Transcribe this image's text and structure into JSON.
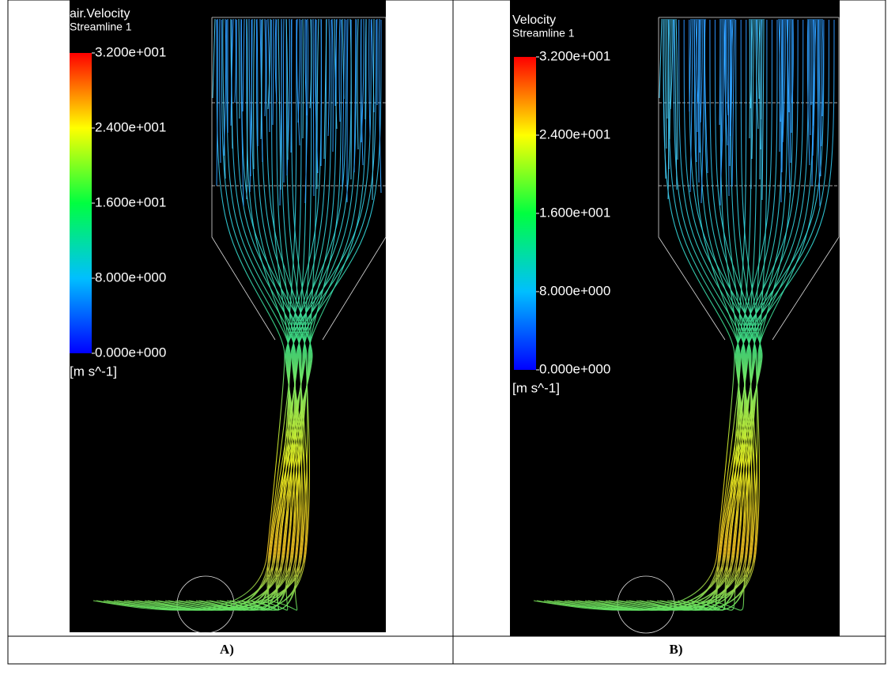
{
  "panels": [
    {
      "title": "air.Velocity",
      "subtitle": "Streamline 1",
      "colorbar": {
        "ticks": [
          {
            "value": 32,
            "label": "3.200e+001"
          },
          {
            "value": 24,
            "label": "2.400e+001"
          },
          {
            "value": 16,
            "label": "1.600e+001"
          },
          {
            "value": 8,
            "label": "8.000e+000"
          },
          {
            "value": 0,
            "label": "0.000e+000"
          }
        ],
        "unit": "[m s^-1]"
      },
      "caption": "A)"
    },
    {
      "title": "Velocity",
      "subtitle": "Streamline 1",
      "colorbar": {
        "ticks": [
          {
            "value": 32,
            "label": "3.200e+001"
          },
          {
            "value": 24,
            "label": "2.400e+001"
          },
          {
            "value": 16,
            "label": "1.600e+001"
          },
          {
            "value": 8,
            "label": "8.000e+000"
          },
          {
            "value": 0,
            "label": "0.000e+000"
          }
        ],
        "unit": "[m s^-1]"
      },
      "caption": "B)"
    }
  ]
}
